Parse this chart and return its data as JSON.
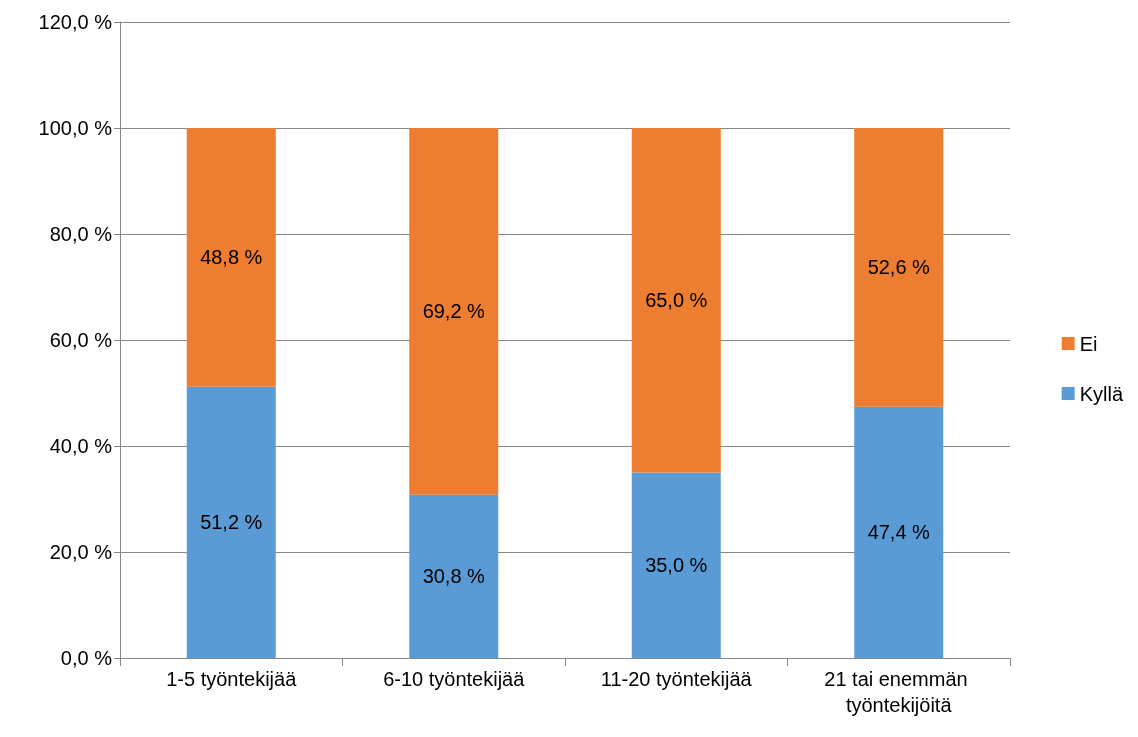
{
  "chart_data": {
    "type": "bar",
    "stacked": true,
    "categories": [
      "1-5 työntekijää",
      "6-10 työntekijää",
      "11-20 työntekijää",
      "21 tai enemmän työntekijöitä"
    ],
    "series": [
      {
        "name": "Kyllä",
        "color": "#5b9bd5",
        "values": [
          51.2,
          30.8,
          35.0,
          47.4
        ],
        "value_labels": [
          "51,2 %",
          "30,8 %",
          "35,0 %",
          "47,4 %"
        ]
      },
      {
        "name": "Ei",
        "color": "#ed7d31",
        "values": [
          48.8,
          69.2,
          65.0,
          52.6
        ],
        "value_labels": [
          "48,8 %",
          "69,2 %",
          "65,0 %",
          "52,6 %"
        ]
      }
    ],
    "ylim": [
      0,
      120
    ],
    "yticks": [
      {
        "value": 0,
        "label": "0,0 %"
      },
      {
        "value": 20,
        "label": "20,0 %"
      },
      {
        "value": 40,
        "label": "40,0 %"
      },
      {
        "value": 60,
        "label": "60,0 %"
      },
      {
        "value": 80,
        "label": "80,0 %"
      },
      {
        "value": 100,
        "label": "100,0 %"
      },
      {
        "value": 120,
        "label": "120,0 %"
      }
    ],
    "grid": "y",
    "legend": "right"
  }
}
